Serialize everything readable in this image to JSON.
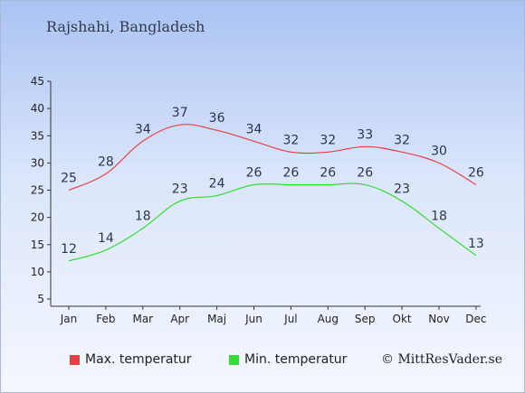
{
  "title": "Rajshahi, Bangladesh",
  "credit": "© MittResVader.se",
  "colors": {
    "max": "#e84040",
    "min": "#33dd33"
  },
  "chart_data": {
    "type": "line",
    "categories": [
      "Jan",
      "Feb",
      "Mar",
      "Apr",
      "Maj",
      "Jun",
      "Jul",
      "Aug",
      "Sep",
      "Okt",
      "Nov",
      "Dec"
    ],
    "yticks": [
      5,
      10,
      15,
      20,
      25,
      30,
      35,
      40,
      45
    ],
    "ylim": [
      5,
      45
    ],
    "grid": false,
    "legend_position": "bottom",
    "series": [
      {
        "name": "Max. temperatur",
        "color": "#e84040",
        "values": [
          25,
          28,
          34,
          37,
          36,
          34,
          32,
          32,
          33,
          32,
          30,
          26
        ]
      },
      {
        "name": "Min. temperatur",
        "color": "#33dd33",
        "values": [
          12,
          14,
          18,
          23,
          24,
          26,
          26,
          26,
          26,
          23,
          18,
          13
        ]
      }
    ]
  }
}
